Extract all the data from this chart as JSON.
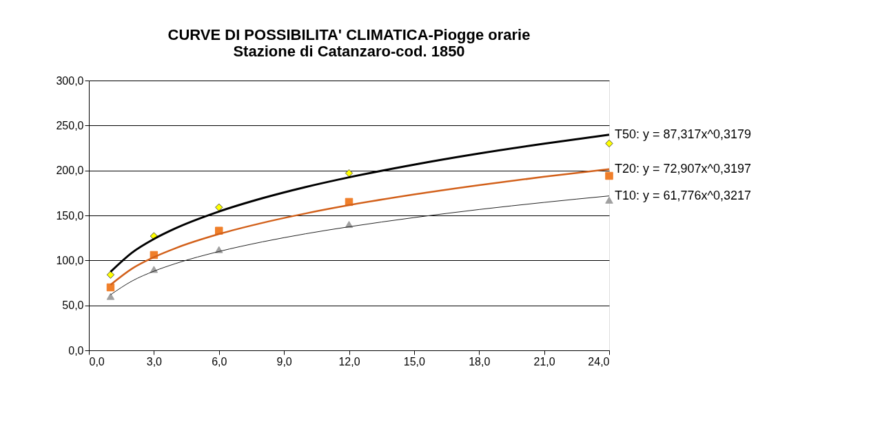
{
  "chart_data": {
    "type": "scatter",
    "title": [
      "CURVE DI POSSIBILITA' CLIMATICA-Piogge orarie",
      "Stazione di Catanzaro-cod. 1850"
    ],
    "series": [
      {
        "marker": "diamond",
        "color": "#ffff00",
        "x": [
          1,
          3,
          6,
          12,
          24
        ],
        "values": [
          84,
          127,
          159,
          197,
          230
        ]
      },
      {
        "marker": "square",
        "color": "#f07f2a",
        "x": [
          1,
          3,
          6,
          12,
          24
        ],
        "values": [
          70,
          106,
          133,
          165,
          194
        ]
      },
      {
        "marker": "triangle",
        "color": "#a0a0a0",
        "x": [
          1,
          3,
          6,
          12,
          24
        ],
        "values": [
          60,
          90,
          112,
          140,
          167
        ]
      },
      {
        "type": "line",
        "name": "T50: y = 87,317x^0,3179",
        "color": "#000000",
        "x": [
          1,
          2,
          3,
          4,
          6,
          8,
          10,
          12,
          15,
          18,
          21,
          24
        ],
        "values": [
          87.3,
          108.8,
          123.8,
          135.7,
          154.3,
          169.1,
          181.6,
          192.4,
          206.5,
          218.9,
          229.8,
          239.8
        ]
      },
      {
        "type": "line",
        "name": "T20: y = 72,907x^0,3197",
        "color": "#d2601a",
        "x": [
          1,
          2,
          3,
          4,
          6,
          8,
          10,
          12,
          15,
          18,
          21,
          24
        ],
        "values": [
          72.9,
          91.0,
          103.6,
          113.6,
          129.3,
          141.7,
          152.2,
          161.4,
          173.3,
          183.7,
          193.0,
          201.4
        ]
      },
      {
        "type": "line",
        "name": "T10: y = 61,776x^0,3217",
        "color": "#202020",
        "x": [
          1,
          2,
          3,
          4,
          6,
          8,
          10,
          12,
          15,
          18,
          21,
          24
        ],
        "values": [
          61.8,
          77.2,
          88.0,
          96.5,
          109.9,
          120.6,
          129.6,
          137.4,
          147.6,
          156.6,
          164.5,
          171.7
        ]
      }
    ],
    "xlim": [
      0,
      24
    ],
    "xticks": [
      {
        "value": 0,
        "label": "0,0"
      },
      {
        "value": 3,
        "label": "3,0"
      },
      {
        "value": 6,
        "label": "6,0"
      },
      {
        "value": 9,
        "label": "9,0"
      },
      {
        "value": 12,
        "label": "12,0"
      },
      {
        "value": 15,
        "label": "15,0"
      },
      {
        "value": 18,
        "label": "18,0"
      },
      {
        "value": 21,
        "label": "21,0"
      },
      {
        "value": 24,
        "label": "24,0"
      }
    ],
    "ylim": [
      0,
      300
    ],
    "yticks": [
      {
        "value": 0,
        "label": "0,0"
      },
      {
        "value": 50,
        "label": "50,0"
      },
      {
        "value": 100,
        "label": "100,0"
      },
      {
        "value": 150,
        "label": "150,0"
      },
      {
        "value": 200,
        "label": "200,0"
      },
      {
        "value": 250,
        "label": "250,0"
      },
      {
        "value": 300,
        "label": "300,0"
      }
    ],
    "grid": "y",
    "line_style": "solid"
  }
}
